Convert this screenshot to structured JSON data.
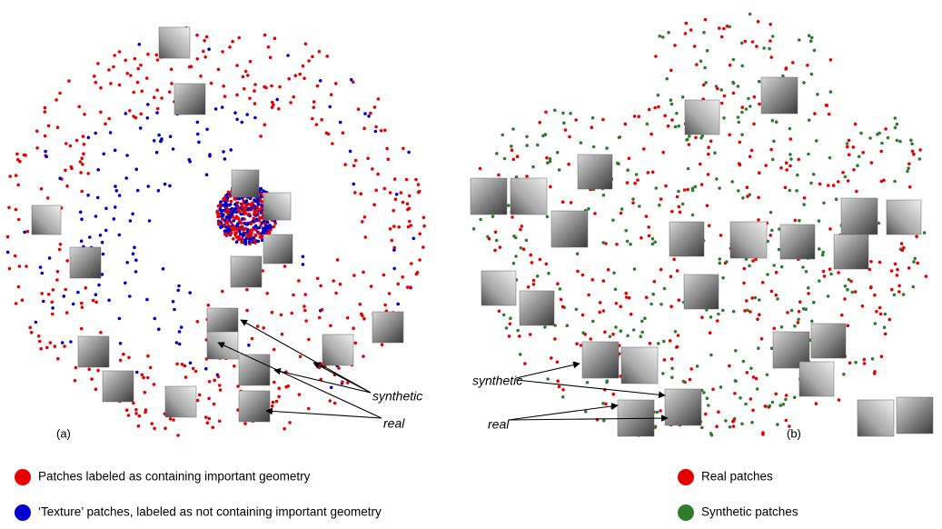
{
  "panels": [
    {
      "label": "(a)",
      "annotations": [
        "synthetic",
        "real"
      ]
    },
    {
      "label": "(b)",
      "annotations": [
        "synthetic",
        "real"
      ]
    }
  ],
  "legend_a": [
    {
      "text": "Patches labeled as containing important geometry",
      "color": "#e60000"
    },
    {
      "text": "‘Texture’ patches, labeled as not containing important geometry",
      "color": "#0000cc"
    }
  ],
  "legend_b": [
    {
      "text": "Real patches",
      "color": "#e60000"
    },
    {
      "text": "Synthetic patches",
      "color": "#2e7d2e"
    }
  ]
}
